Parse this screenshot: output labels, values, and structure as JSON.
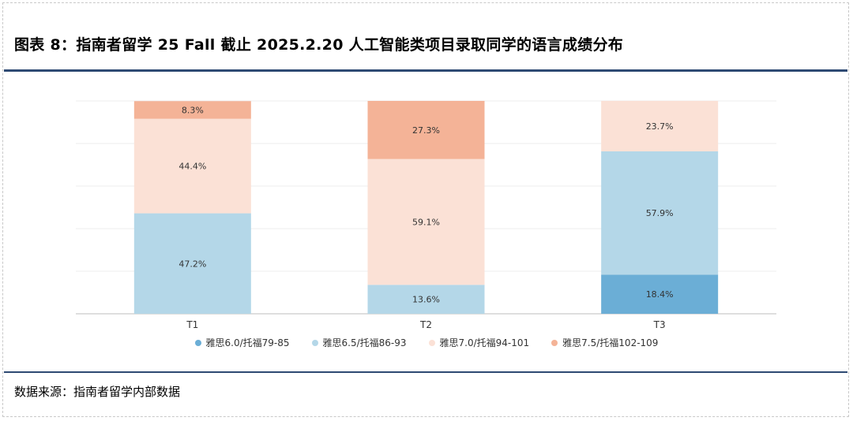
{
  "header": {
    "title": "图表 8：指南者留学 25 Fall 截止 2025.2.20 人工智能类项目录取同学的语言成绩分布"
  },
  "footer": {
    "source": "数据来源：指南者留学内部数据"
  },
  "chart_data": {
    "type": "bar",
    "stacked": true,
    "categories": [
      "T1",
      "T2",
      "T3"
    ],
    "series": [
      {
        "name": "雅思6.0/托福79-85",
        "values": [
          0,
          0,
          18.4
        ],
        "labels": [
          "",
          "",
          "18.4%"
        ],
        "color": "#6baed6"
      },
      {
        "name": "雅思6.5/托福86-93",
        "values": [
          47.2,
          13.6,
          57.9
        ],
        "labels": [
          "47.2%",
          "13.6%",
          "57.9%"
        ],
        "color": "#b4d7e8"
      },
      {
        "name": "雅思7.0/托福94-101",
        "values": [
          44.4,
          59.1,
          23.7
        ],
        "labels": [
          "44.4%",
          "59.1%",
          "23.7%"
        ],
        "color": "#fbe1d6"
      },
      {
        "name": "雅思7.5/托福102-109",
        "values": [
          8.3,
          27.3,
          0
        ],
        "labels": [
          "8.3%",
          "27.3%",
          ""
        ],
        "color": "#f4b397"
      }
    ],
    "ylim": [
      0,
      100
    ],
    "grid": true,
    "legend_position": "bottom"
  }
}
